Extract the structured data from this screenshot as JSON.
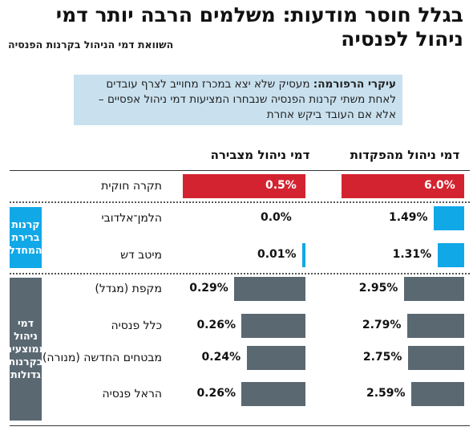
{
  "title": "בגלל חוסר מודעות: משלמים הרבה יותר דמי ניהול לפנסיה",
  "subtitle": "השוואת דמי הניהול בקרנות הפנסיה",
  "info": {
    "lead": "עיקרי הרפורמה:",
    "text": "מעסיק שלא יצא במכרז מחוייב לצרף עובדים לאחת משתי קרנות הפנסיה שנבחרו המציעות דמי ניהול אפסיים – אלא אם העובד ביקש אחרת"
  },
  "groups": {
    "default_funds": "קרנות ברירת המחדל",
    "large_funds": "דמי ניהול ממוצעים בקרנות גדולות"
  },
  "colors": {
    "red": "#d42330",
    "blue": "#11a8e8",
    "gray": "#5a6872",
    "group_blue": "#11a8e8",
    "group_gray": "#5a6872"
  },
  "chart_data": {
    "type": "bar",
    "title": "בגלל חוסר מודעות: משלמים הרבה יותר דמי ניהול לפנסיה",
    "subtitle": "השוואת דמי הניהול בקרנות הפנסיה",
    "categories": [
      "תקרה חוקית",
      "הלמן־אלדובי",
      "מיטב דש",
      "מקפת (מגדל)",
      "כלל פנסיה",
      "מבטחים החדשה (מנורה)",
      "הראל פנסיה"
    ],
    "series": [
      {
        "name": "דמי ניהול מהפקדות",
        "values": [
          6.0,
          1.49,
          1.31,
          2.95,
          2.79,
          2.75,
          2.59
        ],
        "labels": [
          "6.0%",
          "1.49%",
          "1.31%",
          "2.95%",
          "2.79%",
          "2.75%",
          "2.59%"
        ],
        "max": 6.0
      },
      {
        "name": "דמי ניהול מצבירה",
        "values": [
          0.5,
          0.0,
          0.01,
          0.29,
          0.26,
          0.24,
          0.26
        ],
        "labels": [
          "0.5%",
          "0.0%",
          "0.01%",
          "0.29%",
          "0.26%",
          "0.24%",
          "0.26%"
        ],
        "max": 0.5
      }
    ]
  }
}
